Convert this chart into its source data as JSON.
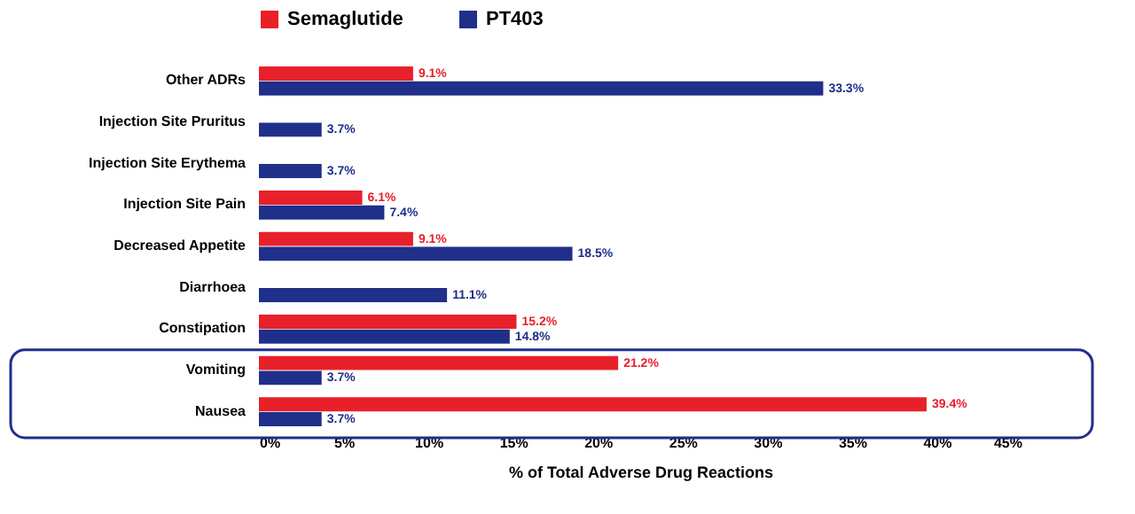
{
  "chart_data": {
    "type": "bar",
    "orientation": "horizontal",
    "xlabel": "% of Total Adverse Drug Reactions",
    "categories": [
      "Other ADRs",
      "Injection Site Pruritus",
      "Injection Site Erythema",
      "Injection Site Pain",
      "Decreased Appetite",
      "Diarrhoea",
      "Constipation",
      "Vomiting",
      "Nausea"
    ],
    "series": [
      {
        "name": "Semaglutide",
        "color": "#e8202a",
        "values": [
          9.1,
          null,
          null,
          6.1,
          9.1,
          null,
          15.2,
          21.2,
          39.4
        ],
        "value_labels": [
          "9.1%",
          null,
          null,
          "6.1%",
          "9.1%",
          null,
          "15.2%",
          "21.2%",
          "39.4%"
        ]
      },
      {
        "name": "PT403",
        "color": "#1f2f8a",
        "values": [
          33.3,
          3.7,
          3.7,
          7.4,
          18.5,
          11.1,
          14.8,
          3.7,
          3.7
        ],
        "value_labels": [
          "33.3%",
          "3.7%",
          "3.7%",
          "7.4%",
          "18.5%",
          "11.1%",
          "14.8%",
          "3.7%",
          "3.7%"
        ]
      }
    ],
    "xlim": [
      0,
      45
    ],
    "xticks": [
      {
        "value": 0,
        "label": "0%"
      },
      {
        "value": 5,
        "label": "5%"
      },
      {
        "value": 10,
        "label": "10%"
      },
      {
        "value": 15,
        "label": "15%"
      },
      {
        "value": 20,
        "label": "20%"
      },
      {
        "value": 25,
        "label": "25%"
      },
      {
        "value": 30,
        "label": "30%"
      },
      {
        "value": 35,
        "label": "35%"
      },
      {
        "value": 40,
        "label": "40%"
      },
      {
        "value": 45,
        "label": "45%"
      }
    ],
    "legend": "top",
    "grid": false
  }
}
